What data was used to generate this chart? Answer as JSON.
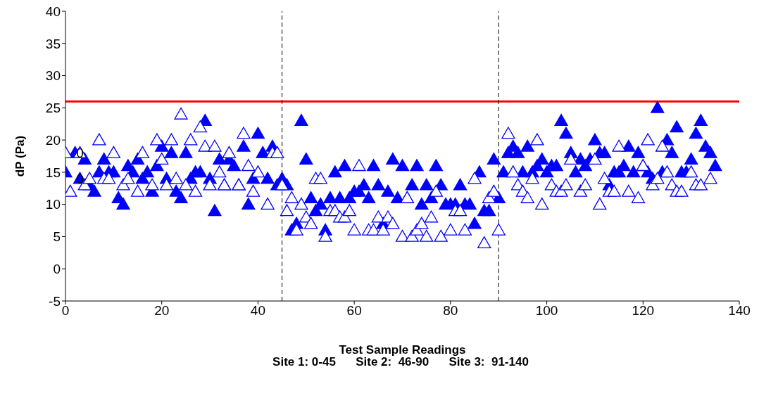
{
  "chart_data": {
    "type": "scatter",
    "xlabel": "Test Sample Readings",
    "ylabel": "dP (Pa)",
    "xlim": [
      0,
      140
    ],
    "xticks": [
      0,
      20,
      40,
      60,
      80,
      100,
      120,
      140
    ],
    "ylim": [
      -5,
      40
    ],
    "yticks": [
      -5,
      0,
      5,
      10,
      15,
      20,
      25,
      30,
      35,
      40
    ],
    "grid": false,
    "legend": false,
    "marker": "triangle",
    "series": [
      {
        "color": "#0000ff",
        "x": [
          0,
          2,
          3,
          4,
          5,
          6,
          7,
          8,
          9,
          10,
          11,
          12,
          13,
          14,
          15,
          16,
          17,
          18,
          19,
          20,
          21,
          22,
          23,
          24,
          25,
          26,
          27,
          28,
          29,
          30,
          31,
          32,
          33,
          34,
          35,
          36,
          37,
          38,
          39,
          40,
          41,
          42,
          43,
          44,
          45,
          46,
          47,
          48,
          49,
          50,
          51,
          52,
          53,
          54,
          55,
          56,
          57,
          58,
          59,
          60,
          61,
          62,
          63,
          64,
          65,
          66,
          67,
          68,
          69,
          70,
          71,
          72,
          73,
          74,
          75,
          76,
          77,
          78,
          79,
          80,
          81,
          82,
          83,
          84,
          85,
          86,
          87,
          88,
          89,
          90,
          91,
          92,
          93,
          94,
          95,
          96,
          97,
          98,
          99,
          100,
          101,
          102,
          103,
          104,
          105,
          106,
          107,
          108,
          109,
          110,
          111,
          112,
          113,
          114,
          115,
          116,
          117,
          118,
          119,
          120,
          121,
          122,
          123,
          124,
          125,
          126,
          127,
          128,
          129,
          130,
          131,
          132,
          133,
          134,
          135
        ],
        "values": [
          15,
          18,
          14,
          17,
          13,
          12,
          15,
          17,
          15,
          15,
          11,
          10,
          16,
          15,
          17,
          14,
          15,
          12,
          16,
          19,
          14,
          18,
          12,
          11,
          18,
          14,
          15,
          15,
          23,
          14,
          9,
          17,
          13,
          17,
          16,
          13,
          19,
          10,
          14,
          21,
          18,
          14,
          19,
          13,
          14,
          13,
          6,
          7,
          23,
          17,
          11,
          9,
          10,
          6,
          11,
          15,
          11,
          16,
          11,
          12,
          12,
          13,
          11,
          16,
          13,
          7,
          12,
          17,
          11,
          16,
          11,
          13,
          16,
          10,
          13,
          11,
          16,
          13,
          10,
          10,
          10,
          13,
          10,
          10,
          7,
          15,
          9,
          9,
          17,
          11,
          15,
          18,
          19,
          18,
          15,
          19,
          15,
          16,
          17,
          15,
          16,
          16,
          23,
          21,
          18,
          15,
          17,
          16,
          17,
          20,
          18,
          18,
          13,
          15,
          15,
          16,
          19,
          15,
          18,
          16,
          15,
          14,
          25,
          15,
          20,
          18,
          22,
          15,
          15,
          17,
          21,
          23,
          19,
          18,
          16
        ]
      },
      {
        "color": "#0000ff",
        "x": [
          0,
          1,
          3,
          4,
          5,
          7,
          8,
          9,
          10,
          12,
          13,
          15,
          16,
          18,
          19,
          20,
          21,
          22,
          23,
          24,
          25,
          26,
          27,
          28,
          29,
          30,
          31,
          32,
          33,
          34,
          36,
          37,
          38,
          39,
          40,
          42,
          43,
          44,
          45,
          46,
          47,
          48,
          49,
          50,
          51,
          52,
          53,
          54,
          55,
          56,
          57,
          58,
          59,
          60,
          61,
          63,
          64,
          65,
          66,
          67,
          68,
          70,
          71,
          72,
          73,
          74,
          75,
          76,
          77,
          78,
          80,
          81,
          82,
          83,
          85,
          87,
          88,
          89,
          90,
          92,
          93,
          94,
          95,
          96,
          97,
          98,
          99,
          101,
          102,
          103,
          104,
          105,
          107,
          108,
          110,
          111,
          112,
          113,
          114,
          115,
          117,
          119,
          120,
          121,
          122,
          123,
          124,
          125,
          126,
          127,
          128,
          130,
          131,
          132,
          134
        ],
        "values": [
          18,
          12,
          18,
          13,
          14,
          20,
          14,
          14,
          18,
          13,
          14,
          12,
          18,
          13,
          20,
          17,
          13,
          20,
          14,
          24,
          13,
          20,
          12,
          22,
          19,
          13,
          19,
          15,
          13,
          18,
          13,
          21,
          16,
          12,
          15,
          10,
          18,
          18,
          13,
          9,
          11,
          6,
          10,
          8,
          7,
          14,
          14,
          5,
          9,
          9,
          8,
          8,
          9,
          6,
          16,
          6,
          6,
          8,
          6,
          8,
          7,
          5,
          11,
          5,
          6,
          7,
          5,
          8,
          12,
          5,
          6,
          9,
          9,
          6,
          14,
          4,
          11,
          12,
          6,
          21,
          15,
          13,
          12,
          11,
          14,
          20,
          10,
          13,
          12,
          12,
          13,
          17,
          12,
          13,
          17,
          10,
          14,
          12,
          12,
          19,
          12,
          11,
          16,
          20,
          13,
          14,
          19,
          15,
          13,
          12,
          12,
          15,
          13,
          13,
          14
        ]
      }
    ],
    "ref_lines": [
      {
        "axis": "y",
        "value": 26,
        "color": "#ff0000",
        "line_style": "solid"
      },
      {
        "axis": "x",
        "value": 45,
        "color": "#000000",
        "line_style": "dashed"
      },
      {
        "axis": "x",
        "value": 90,
        "color": "#000000",
        "line_style": "dashed"
      }
    ],
    "annotations": [
      {
        "text": "0",
        "x": 3,
        "y": 18
      },
      {
        "text": "0",
        "x": 3,
        "y": 14
      },
      "Site 1: 0-45      Site 2:  46-90      Site 3:  91-140"
    ]
  }
}
